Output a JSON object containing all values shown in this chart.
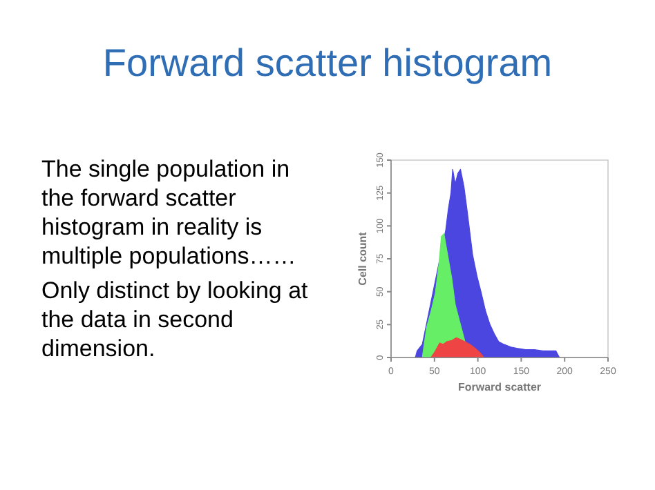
{
  "chart_data": {
    "type": "area",
    "title": "Forward scatter histogram",
    "xlabel": "Forward scatter",
    "ylabel": "Cell count",
    "annotations": [
      "The single population in the forward scatter histogram in reality is multiple populations……",
      "Only distinct by looking at the data in second dimension."
    ],
    "xlim": [
      0,
      250
    ],
    "xticks": [
      0,
      50,
      100,
      150,
      200,
      250
    ],
    "ylim": [
      0,
      150
    ],
    "yticks": [
      0,
      25,
      50,
      75,
      100,
      125,
      150
    ],
    "grid": false,
    "series": [
      {
        "color": "#4b46e0",
        "x": [
          28,
          30,
          36,
          63,
          66,
          69,
          71,
          74,
          77,
          80,
          84,
          88,
          94,
          99,
          104,
          109,
          114,
          119,
          124,
          130,
          138,
          145,
          155,
          165,
          175,
          185,
          190,
          194
        ],
        "values": [
          0,
          5,
          10,
          97,
          113,
          125,
          143,
          132,
          140,
          143,
          130,
          110,
          78,
          62,
          49,
          35,
          25,
          18,
          12,
          10,
          8,
          7,
          6,
          6,
          5,
          5,
          5,
          0
        ]
      },
      {
        "color": "#66ee66",
        "x": [
          36,
          41,
          46,
          51,
          55,
          58,
          61,
          62,
          66,
          70,
          74,
          80,
          86,
          90
        ],
        "values": [
          0,
          23,
          35,
          49,
          70,
          92,
          94,
          90,
          75,
          60,
          40,
          25,
          10,
          0
        ]
      },
      {
        "color": "#ee4444",
        "x": [
          46,
          51,
          56,
          60,
          64,
          70,
          75,
          79,
          85,
          91,
          97,
          102,
          107
        ],
        "values": [
          0,
          5,
          11,
          10,
          12,
          13,
          15,
          14,
          12,
          10,
          7,
          4,
          0
        ]
      }
    ]
  }
}
